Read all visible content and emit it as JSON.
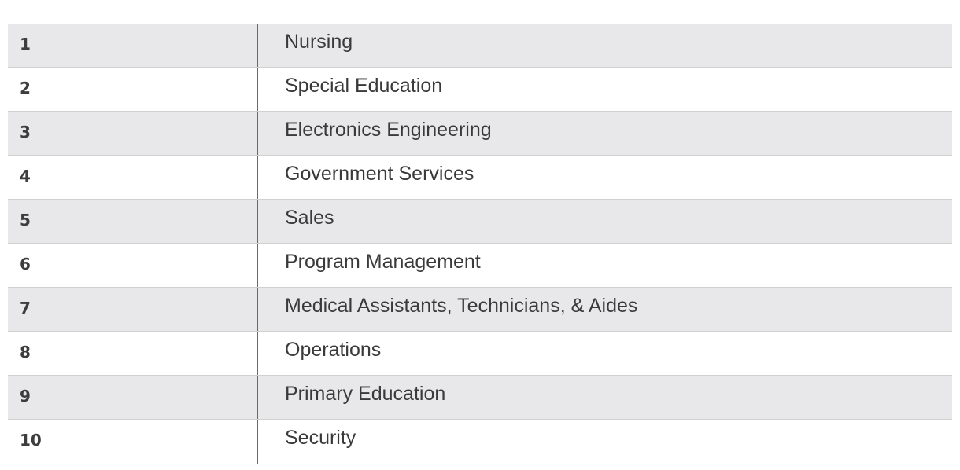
{
  "rows": [
    {
      "rank": "1",
      "label": "Nursing"
    },
    {
      "rank": "2",
      "label": "Special Education"
    },
    {
      "rank": "3",
      "label": "Electronics Engineering"
    },
    {
      "rank": "4",
      "label": "Government Services"
    },
    {
      "rank": "5",
      "label": "Sales"
    },
    {
      "rank": "6",
      "label": "Program Management"
    },
    {
      "rank": "7",
      "label": "Medical Assistants, Technicians, & Aides"
    },
    {
      "rank": "8",
      "label": "Operations"
    },
    {
      "rank": "9",
      "label": "Primary Education"
    },
    {
      "rank": "10",
      "label": "Security"
    }
  ]
}
